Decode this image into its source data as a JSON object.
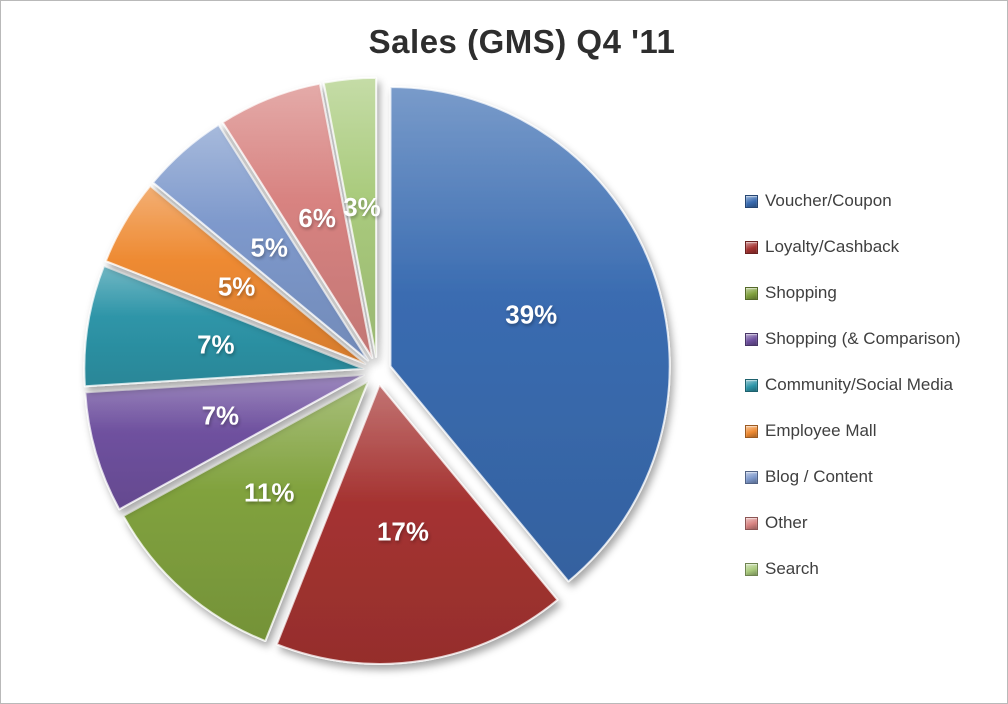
{
  "window": {
    "background": "#ffffff",
    "border_color": "#b9b9b9"
  },
  "chart_data": {
    "type": "pie",
    "title": "Sales (GMS) Q4 '11",
    "categories": [
      "Voucher/Coupon",
      "Loyalty/Cashback",
      "Shopping",
      "Shopping (& Comparison)",
      "Community/Social Media",
      "Employee Mall",
      "Blog / Content",
      "Other",
      "Search"
    ],
    "values": [
      39,
      17,
      11,
      7,
      7,
      5,
      5,
      6,
      3
    ],
    "unit": "%",
    "data_labels": [
      "39%",
      "17%",
      "11%",
      "7%",
      "7%",
      "5%",
      "5%",
      "6%",
      "3%"
    ],
    "colors": [
      "#3A6CB1",
      "#A53331",
      "#81A23E",
      "#6F519F",
      "#2E95A8",
      "#EE8A32",
      "#7E99CC",
      "#D88381",
      "#AACB7D"
    ],
    "label_color": "#ffffff",
    "legend_position": "right",
    "legend_text_color": "#3f3f3f",
    "exploded": true,
    "start_angle_deg": 0,
    "direction": "clockwise"
  }
}
